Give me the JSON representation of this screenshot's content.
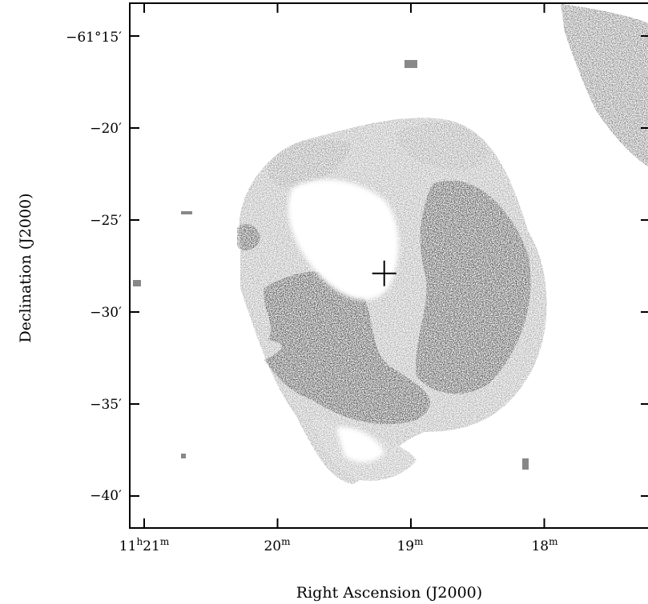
{
  "figure": {
    "x_axis_title": "Right Ascension (J2000)",
    "y_axis_title": "Declination (J2000)",
    "dec_ticks": [
      {
        "dec_arcmin": -15,
        "label": "−61°15′"
      },
      {
        "dec_arcmin": -20,
        "label": "−20′"
      },
      {
        "dec_arcmin": -25,
        "label": "−25′"
      },
      {
        "dec_arcmin": -30,
        "label": "−30′"
      },
      {
        "dec_arcmin": -35,
        "label": "−35′"
      },
      {
        "dec_arcmin": -40,
        "label": "−40′"
      }
    ],
    "ra_ticks": [
      {
        "ra_min": 21,
        "hours": "11",
        "h_sup": "h",
        "minutes": "21",
        "m_sup": "m"
      },
      {
        "ra_min": 20,
        "hours": "",
        "h_sup": "",
        "minutes": "20",
        "m_sup": "m"
      },
      {
        "ra_min": 19,
        "hours": "",
        "h_sup": "",
        "minutes": "19",
        "m_sup": "m"
      },
      {
        "ra_min": 18,
        "hours": "",
        "h_sup": "",
        "minutes": "18",
        "m_sup": "m"
      }
    ],
    "center_marker": {
      "ra_min": 19.2,
      "dec_arcmin": -27.9
    }
  }
}
